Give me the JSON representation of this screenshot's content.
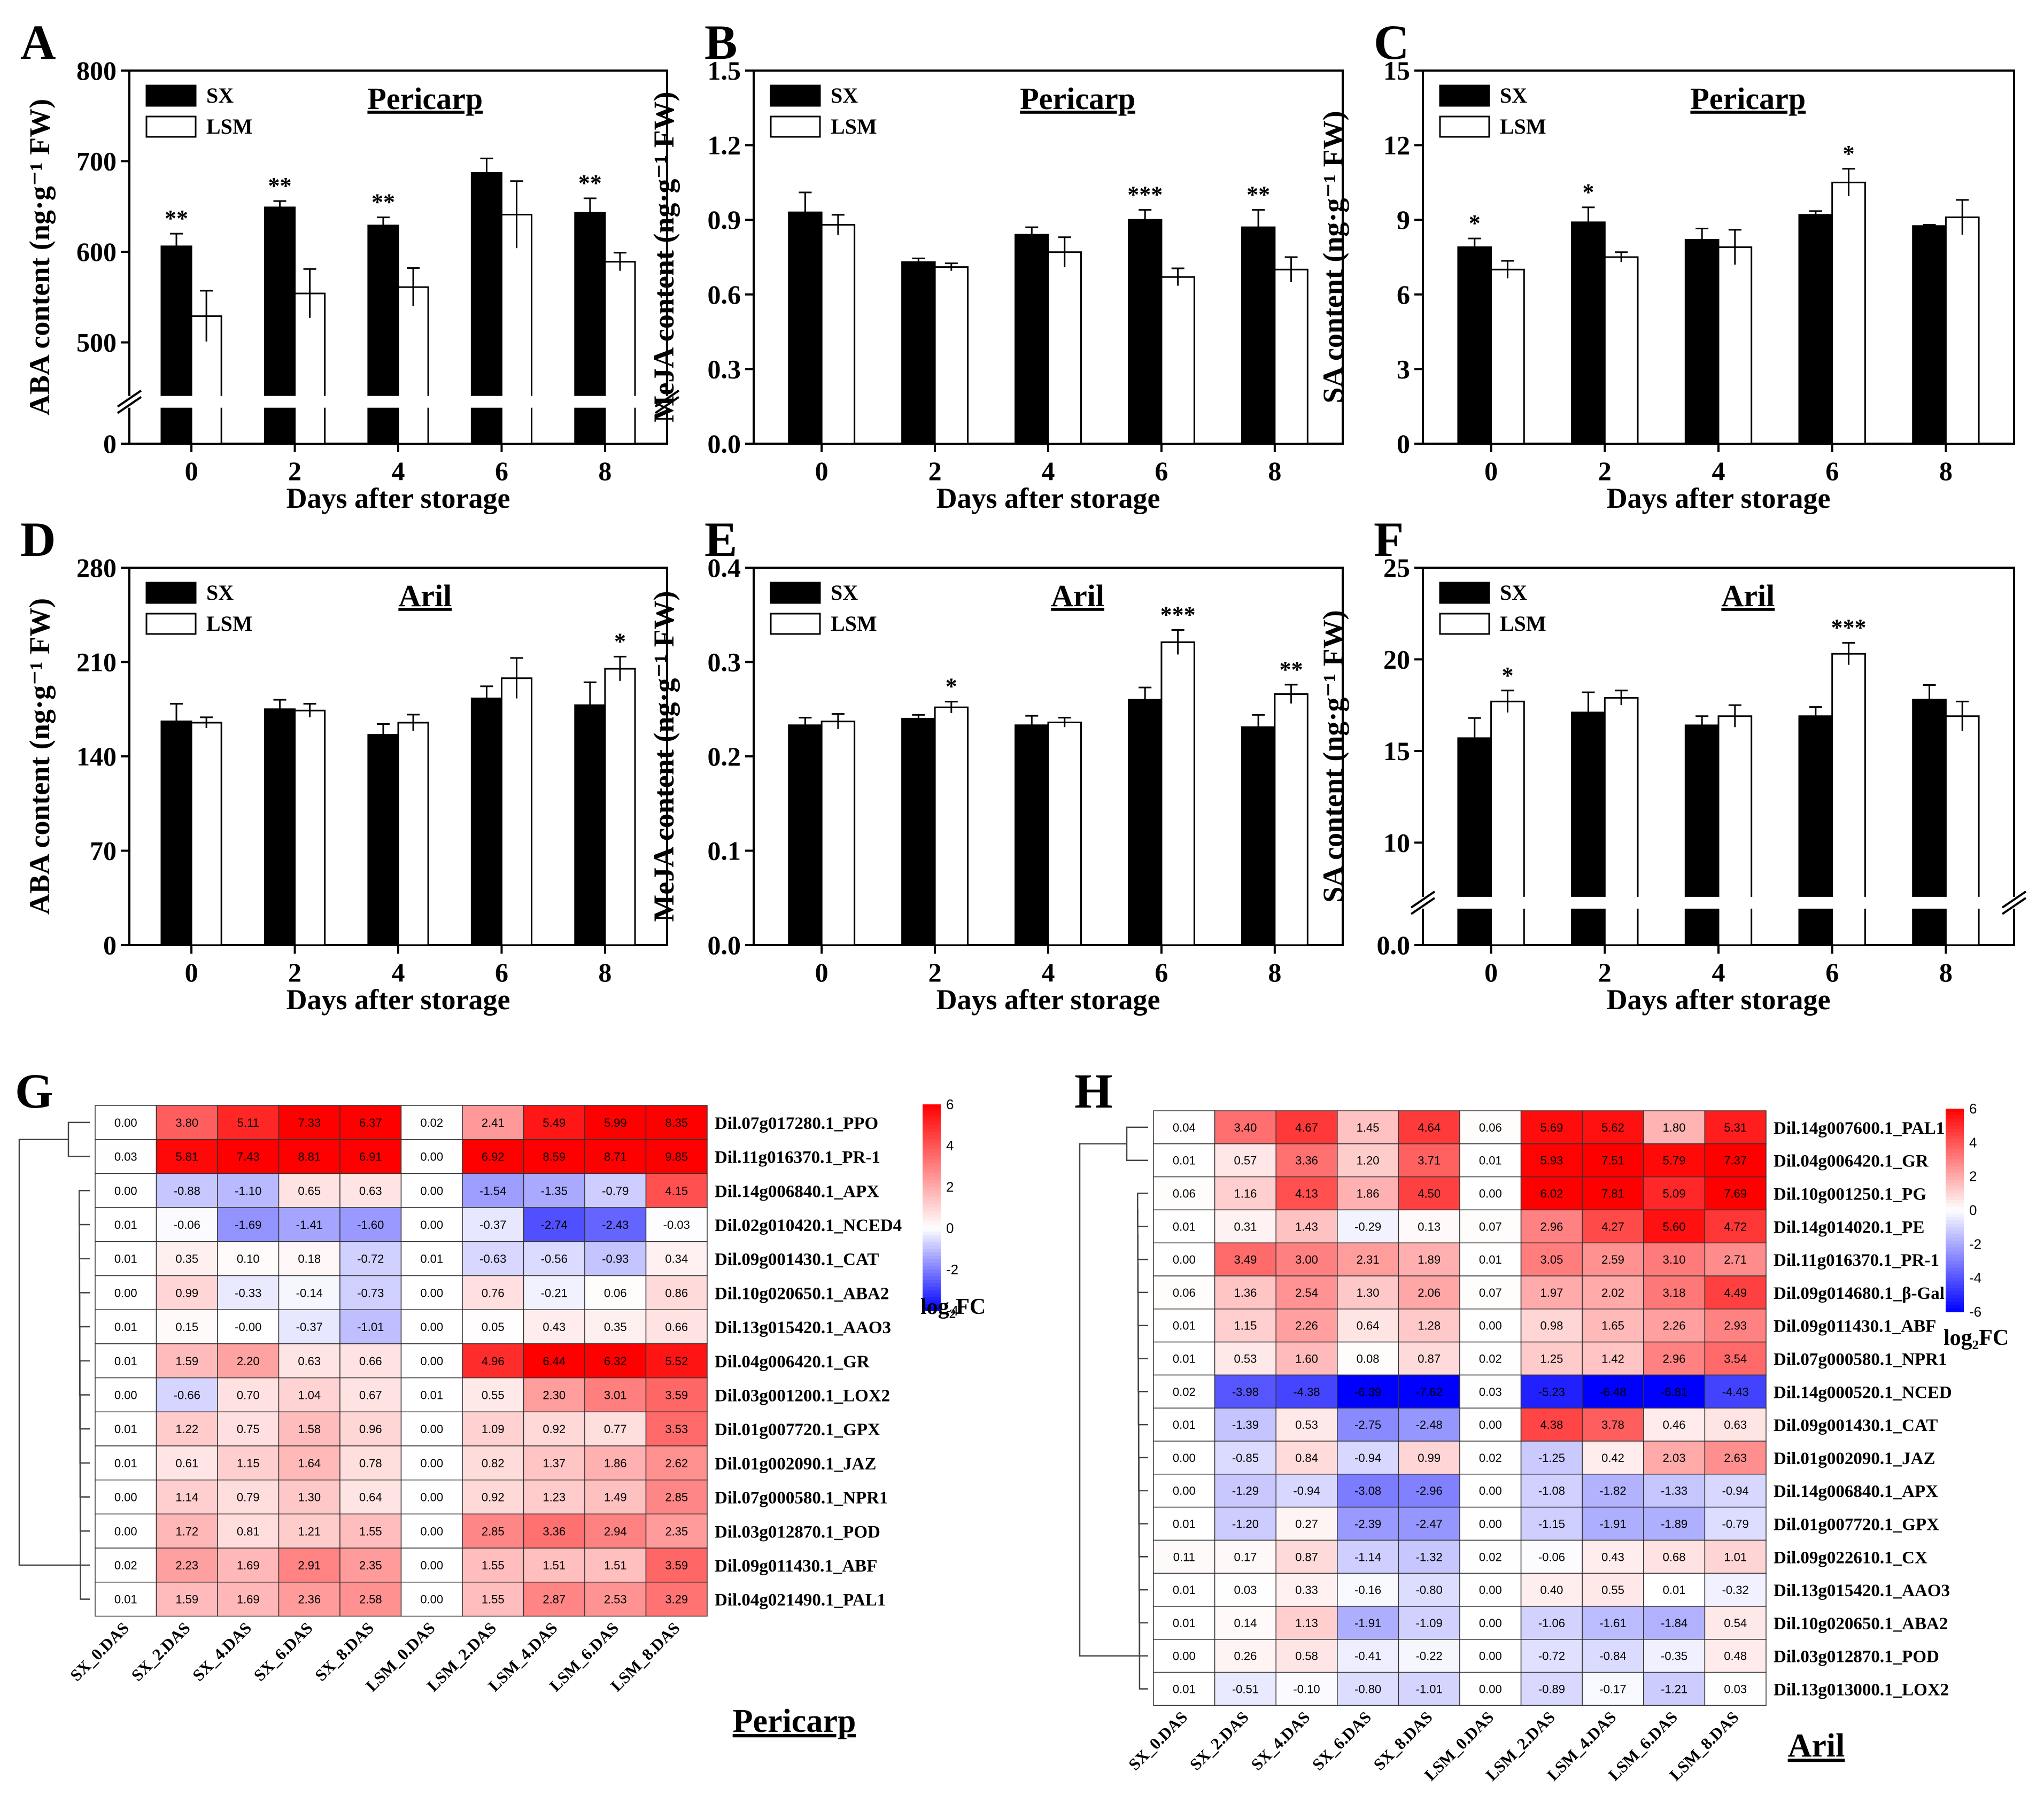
{
  "chart_data": [
    {
      "panel": "A",
      "type": "bar",
      "title": "Pericarp",
      "xlabel": "Days after storage",
      "ylabel": "ABA  content  (ng·g⁻¹ FW)",
      "categories": [
        "0",
        "2",
        "4",
        "6",
        "8"
      ],
      "y_ticks": [
        "0",
        "500",
        "600",
        "700",
        "800"
      ],
      "axis_break": true,
      "ylim": [
        450,
        800
      ],
      "series": [
        {
          "name": "SX",
          "color": "#000000",
          "values": [
            606,
            649,
            629,
            687,
            643
          ],
          "errors": [
            14,
            7,
            9,
            16,
            16
          ],
          "sig": [
            "**",
            "**",
            "**",
            "",
            ""
          ]
        },
        {
          "name": "LSM",
          "color": "#ffffff",
          "values": [
            529,
            554,
            561,
            641,
            589
          ],
          "errors": [
            28,
            27,
            21,
            37,
            10
          ],
          "sig": [
            "",
            "",
            "",
            "",
            ""
          ]
        }
      ],
      "sig_over_pair": [
        "**",
        "**",
        "**",
        "",
        "**"
      ]
    },
    {
      "panel": "B",
      "type": "bar",
      "title": "Pericarp",
      "xlabel": "Days after storage",
      "ylabel": "MeJA  content  (ng·g⁻¹ FW)",
      "categories": [
        "0",
        "2",
        "4",
        "6",
        "8"
      ],
      "y_ticks": [
        "0.0",
        "0.3",
        "0.6",
        "0.9",
        "1.2",
        "1.5"
      ],
      "ylim": [
        0,
        1.5
      ],
      "series": [
        {
          "name": "SX",
          "color": "#000000",
          "values": [
            0.93,
            0.73,
            0.84,
            0.9,
            0.87
          ],
          "errors": [
            0.08,
            0.015,
            0.03,
            0.04,
            0.07
          ]
        },
        {
          "name": "LSM",
          "color": "#ffffff",
          "values": [
            0.88,
            0.71,
            0.77,
            0.67,
            0.7
          ],
          "errors": [
            0.04,
            0.015,
            0.06,
            0.035,
            0.05
          ]
        }
      ],
      "sig_over_pair": [
        "",
        "",
        "",
        "***",
        "**"
      ]
    },
    {
      "panel": "C",
      "type": "bar",
      "title": "Pericarp",
      "xlabel": "Days after storage",
      "ylabel": "SA  content  (ng·g⁻¹ FW)",
      "categories": [
        "0",
        "2",
        "4",
        "6",
        "8"
      ],
      "y_ticks": [
        "0",
        "3",
        "6",
        "9",
        "12",
        "15"
      ],
      "ylim": [
        0,
        15
      ],
      "series": [
        {
          "name": "SX",
          "color": "#000000",
          "values": [
            7.9,
            8.9,
            8.2,
            9.2,
            8.75
          ],
          "errors": [
            0.35,
            0.6,
            0.45,
            0.15,
            0.05
          ]
        },
        {
          "name": "LSM",
          "color": "#ffffff",
          "values": [
            7.0,
            7.5,
            7.9,
            10.5,
            9.1
          ],
          "errors": [
            0.35,
            0.2,
            0.7,
            0.55,
            0.7
          ]
        }
      ],
      "sig_over_pair": [
        "*",
        "*",
        "",
        "*",
        ""
      ]
    },
    {
      "panel": "D",
      "type": "bar",
      "title": "Aril",
      "xlabel": "Days after storage",
      "ylabel": "ABA  content  (ng·g⁻¹ FW)",
      "categories": [
        "0",
        "2",
        "4",
        "6",
        "8"
      ],
      "y_ticks": [
        "0",
        "70",
        "140",
        "210",
        "280"
      ],
      "ylim": [
        0,
        280
      ],
      "series": [
        {
          "name": "SX",
          "color": "#000000",
          "values": [
            166,
            175,
            156,
            183,
            178
          ],
          "errors": [
            13,
            7,
            8,
            9,
            17
          ]
        },
        {
          "name": "LSM",
          "color": "#ffffff",
          "values": [
            165,
            174,
            165,
            198,
            205
          ],
          "errors": [
            4,
            5,
            6,
            15,
            9
          ]
        }
      ],
      "sig_over_pair": [
        "",
        "",
        "",
        "",
        "*"
      ]
    },
    {
      "panel": "E",
      "type": "bar",
      "title": "Aril",
      "xlabel": "Days after storage",
      "ylabel": "MeJA  content  (ng·g⁻¹ FW)",
      "categories": [
        "0",
        "2",
        "4",
        "6",
        "8"
      ],
      "y_ticks": [
        "0.0",
        "0.1",
        "0.2",
        "0.3",
        "0.4"
      ],
      "ylim": [
        0,
        0.4
      ],
      "series": [
        {
          "name": "SX",
          "color": "#000000",
          "values": [
            0.233,
            0.24,
            0.233,
            0.26,
            0.231
          ],
          "errors": [
            0.008,
            0.004,
            0.01,
            0.013,
            0.013
          ]
        },
        {
          "name": "LSM",
          "color": "#ffffff",
          "values": [
            0.237,
            0.252,
            0.236,
            0.321,
            0.266
          ],
          "errors": [
            0.008,
            0.006,
            0.005,
            0.013,
            0.01
          ]
        }
      ],
      "sig_over_pair": [
        "",
        "*",
        "",
        "***",
        "**"
      ]
    },
    {
      "panel": "F",
      "type": "bar",
      "title": "Aril",
      "xlabel": "Days after storage",
      "ylabel": "SA  content  (ng·g⁻¹ FW)",
      "categories": [
        "0",
        "2",
        "4",
        "6",
        "8"
      ],
      "y_ticks": [
        "0.0",
        "10",
        "15",
        "20",
        "25"
      ],
      "axis_break": true,
      "ylim": [
        7.5,
        25
      ],
      "series": [
        {
          "name": "SX",
          "color": "#000000",
          "values": [
            15.7,
            17.1,
            16.4,
            16.9,
            17.8
          ],
          "errors": [
            1.1,
            1.1,
            0.5,
            0.5,
            0.8
          ]
        },
        {
          "name": "LSM",
          "color": "#ffffff",
          "values": [
            17.7,
            17.9,
            16.9,
            20.3,
            16.9
          ],
          "errors": [
            0.6,
            0.4,
            0.6,
            0.6,
            0.8
          ]
        }
      ],
      "sig_over_pair": [
        "*",
        "",
        "",
        "***",
        ""
      ]
    },
    {
      "panel": "G",
      "type": "heatmap",
      "title": "Pericarp",
      "colorbar_label": "log₂FC",
      "colorbar_ticks": [
        "6",
        "4",
        "2",
        "0",
        "-2",
        "-4"
      ],
      "range": [
        -4,
        6
      ],
      "columns": [
        "SX_0.DAS",
        "SX_2.DAS",
        "SX_4.DAS",
        "SX_6.DAS",
        "SX_8.DAS",
        "LSM_0.DAS",
        "LSM_2.DAS",
        "LSM_4.DAS",
        "LSM_6.DAS",
        "LSM_8.DAS"
      ],
      "rows": [
        "Dil.07g017280.1_PPO",
        "Dil.11g016370.1_PR-1",
        "Dil.14g006840.1_APX",
        "Dil.02g010420.1_NCED4",
        "Dil.09g001430.1_CAT",
        "Dil.10g020650.1_ABA2",
        "Dil.13g015420.1_AAO3",
        "Dil.04g006420.1_GR",
        "Dil.03g001200.1_LOX2",
        "Dil.01g007720.1_GPX",
        "Dil.01g002090.1_JAZ",
        "Dil.07g000580.1_NPR1",
        "Dil.03g012870.1_POD",
        "Dil.09g011430.1_ABF",
        "Dil.04g021490.1_PAL1"
      ],
      "values": [
        [
          "0.00",
          "3.80",
          "5.11",
          "7.33",
          "6.37",
          "0.02",
          "2.41",
          "5.49",
          "5.99",
          "8.35"
        ],
        [
          "0.03",
          "5.81",
          "7.43",
          "8.81",
          "6.91",
          "0.00",
          "6.92",
          "8.59",
          "8.71",
          "9.85"
        ],
        [
          "0.00",
          "-0.88",
          "-1.10",
          "0.65",
          "0.63",
          "0.00",
          "-1.54",
          "-1.35",
          "-0.79",
          "4.15"
        ],
        [
          "0.01",
          "-0.06",
          "-1.69",
          "-1.41",
          "-1.60",
          "0.00",
          "-0.37",
          "-2.74",
          "-2.43",
          "-0.03"
        ],
        [
          "0.01",
          "0.35",
          "0.10",
          "0.18",
          "-0.72",
          "0.01",
          "-0.63",
          "-0.56",
          "-0.93",
          "0.34"
        ],
        [
          "0.00",
          "0.99",
          "-0.33",
          "-0.14",
          "-0.73",
          "0.00",
          "0.76",
          "-0.21",
          "0.06",
          "0.86"
        ],
        [
          "0.01",
          "0.15",
          "-0.00",
          "-0.37",
          "-1.01",
          "0.00",
          "0.05",
          "0.43",
          "0.35",
          "0.66"
        ],
        [
          "0.01",
          "1.59",
          "2.20",
          "0.63",
          "0.66",
          "0.00",
          "4.96",
          "6.44",
          "6.32",
          "5.52"
        ],
        [
          "0.00",
          "-0.66",
          "0.70",
          "1.04",
          "0.67",
          "0.01",
          "0.55",
          "2.30",
          "3.01",
          "3.59"
        ],
        [
          "0.01",
          "1.22",
          "0.75",
          "1.58",
          "0.96",
          "0.00",
          "1.09",
          "0.92",
          "0.77",
          "3.53"
        ],
        [
          "0.01",
          "0.61",
          "1.15",
          "1.64",
          "0.78",
          "0.00",
          "0.82",
          "1.37",
          "1.86",
          "2.62"
        ],
        [
          "0.00",
          "1.14",
          "0.79",
          "1.30",
          "0.64",
          "0.00",
          "0.92",
          "1.23",
          "1.49",
          "2.85"
        ],
        [
          "0.00",
          "1.72",
          "0.81",
          "1.21",
          "1.55",
          "0.00",
          "2.85",
          "3.36",
          "2.94",
          "2.35"
        ],
        [
          "0.02",
          "2.23",
          "1.69",
          "2.91",
          "2.35",
          "0.00",
          "1.55",
          "1.51",
          "1.51",
          "3.59"
        ],
        [
          "0.01",
          "1.59",
          "1.69",
          "2.36",
          "2.58",
          "0.00",
          "1.55",
          "2.87",
          "2.53",
          "3.29"
        ]
      ]
    },
    {
      "panel": "H",
      "type": "heatmap",
      "title": "Aril",
      "colorbar_label": "log₂FC",
      "colorbar_ticks": [
        "6",
        "4",
        "2",
        "0",
        "-2",
        "-4",
        "-6"
      ],
      "range": [
        -6,
        6
      ],
      "columns": [
        "SX_0.DAS",
        "SX_2.DAS",
        "SX_4.DAS",
        "SX_6.DAS",
        "SX_8.DAS",
        "LSM_0.DAS",
        "LSM_2.DAS",
        "LSM_4.DAS",
        "LSM_6.DAS",
        "LSM_8.DAS"
      ],
      "rows": [
        "Dil.14g007600.1_PAL1",
        "Dil.04g006420.1_GR",
        "Dil.10g001250.1_PG",
        "Dil.14g014020.1_PE",
        "Dil.11g016370.1_PR-1",
        "Dil.09g014680.1_β-Gal",
        "Dil.09g011430.1_ABF",
        "Dil.07g000580.1_NPR1",
        "Dil.14g000520.1_NCED",
        "Dil.09g001430.1_CAT",
        "Dil.01g002090.1_JAZ",
        "Dil.14g006840.1_APX",
        "Dil.01g007720.1_GPX",
        "Dil.09g022610.1_CX",
        "Dil.13g015420.1_AAO3",
        "Dil.10g020650.1_ABA2",
        "Dil.03g012870.1_POD",
        "Dil.13g013000.1_LOX2"
      ],
      "values": [
        [
          "0.04",
          "3.40",
          "4.67",
          "1.45",
          "4.64",
          "0.06",
          "5.69",
          "5.62",
          "1.80",
          "5.31"
        ],
        [
          "0.01",
          "0.57",
          "3.36",
          "1.20",
          "3.71",
          "0.01",
          "5.93",
          "7.51",
          "5.79",
          "7.37"
        ],
        [
          "0.06",
          "1.16",
          "4.13",
          "1.86",
          "4.50",
          "0.00",
          "6.02",
          "7.81",
          "5.09",
          "7.69"
        ],
        [
          "0.01",
          "0.31",
          "1.43",
          "-0.29",
          "0.13",
          "0.07",
          "2.96",
          "4.27",
          "5.60",
          "4.72"
        ],
        [
          "0.00",
          "3.49",
          "3.00",
          "2.31",
          "1.89",
          "0.01",
          "3.05",
          "2.59",
          "3.10",
          "2.71"
        ],
        [
          "0.06",
          "1.36",
          "2.54",
          "1.30",
          "2.06",
          "0.07",
          "1.97",
          "2.02",
          "3.18",
          "4.49"
        ],
        [
          "0.01",
          "1.15",
          "2.26",
          "0.64",
          "1.28",
          "0.00",
          "0.98",
          "1.65",
          "2.26",
          "2.93"
        ],
        [
          "0.01",
          "0.53",
          "1.60",
          "0.08",
          "0.87",
          "0.02",
          "1.25",
          "1.42",
          "2.96",
          "3.54"
        ],
        [
          "0.02",
          "-3.98",
          "-4.38",
          "-6.39",
          "-7.62",
          "0.03",
          "-5.23",
          "-6.48",
          "-6.81",
          "-4.43"
        ],
        [
          "0.01",
          "-1.39",
          "0.53",
          "-2.75",
          "-2.48",
          "0.00",
          "4.38",
          "3.78",
          "0.46",
          "0.63"
        ],
        [
          "0.00",
          "-0.85",
          "0.84",
          "-0.94",
          "0.99",
          "0.02",
          "-1.25",
          "0.42",
          "2.03",
          "2.63"
        ],
        [
          "0.00",
          "-1.29",
          "-0.94",
          "-3.08",
          "-2.96",
          "0.00",
          "-1.08",
          "-1.82",
          "-1.33",
          "-0.94"
        ],
        [
          "0.01",
          "-1.20",
          "0.27",
          "-2.39",
          "-2.47",
          "0.00",
          "-1.15",
          "-1.91",
          "-1.89",
          "-0.79"
        ],
        [
          "0.11",
          "0.17",
          "0.87",
          "-1.14",
          "-1.32",
          "0.02",
          "-0.06",
          "0.43",
          "0.68",
          "1.01"
        ],
        [
          "0.01",
          "0.03",
          "0.33",
          "-0.16",
          "-0.80",
          "0.00",
          "0.40",
          "0.55",
          "0.01",
          "-0.32"
        ],
        [
          "0.01",
          "0.14",
          "1.13",
          "-1.91",
          "-1.09",
          "0.00",
          "-1.06",
          "-1.61",
          "-1.84",
          "0.54"
        ],
        [
          "0.00",
          "0.26",
          "0.58",
          "-0.41",
          "-0.22",
          "0.00",
          "-0.72",
          "-0.84",
          "-0.35",
          "0.48"
        ],
        [
          "0.01",
          "-0.51",
          "-0.10",
          "-0.80",
          "-1.01",
          "0.00",
          "-0.89",
          "-0.17",
          "-1.21",
          "0.03"
        ]
      ]
    }
  ]
}
